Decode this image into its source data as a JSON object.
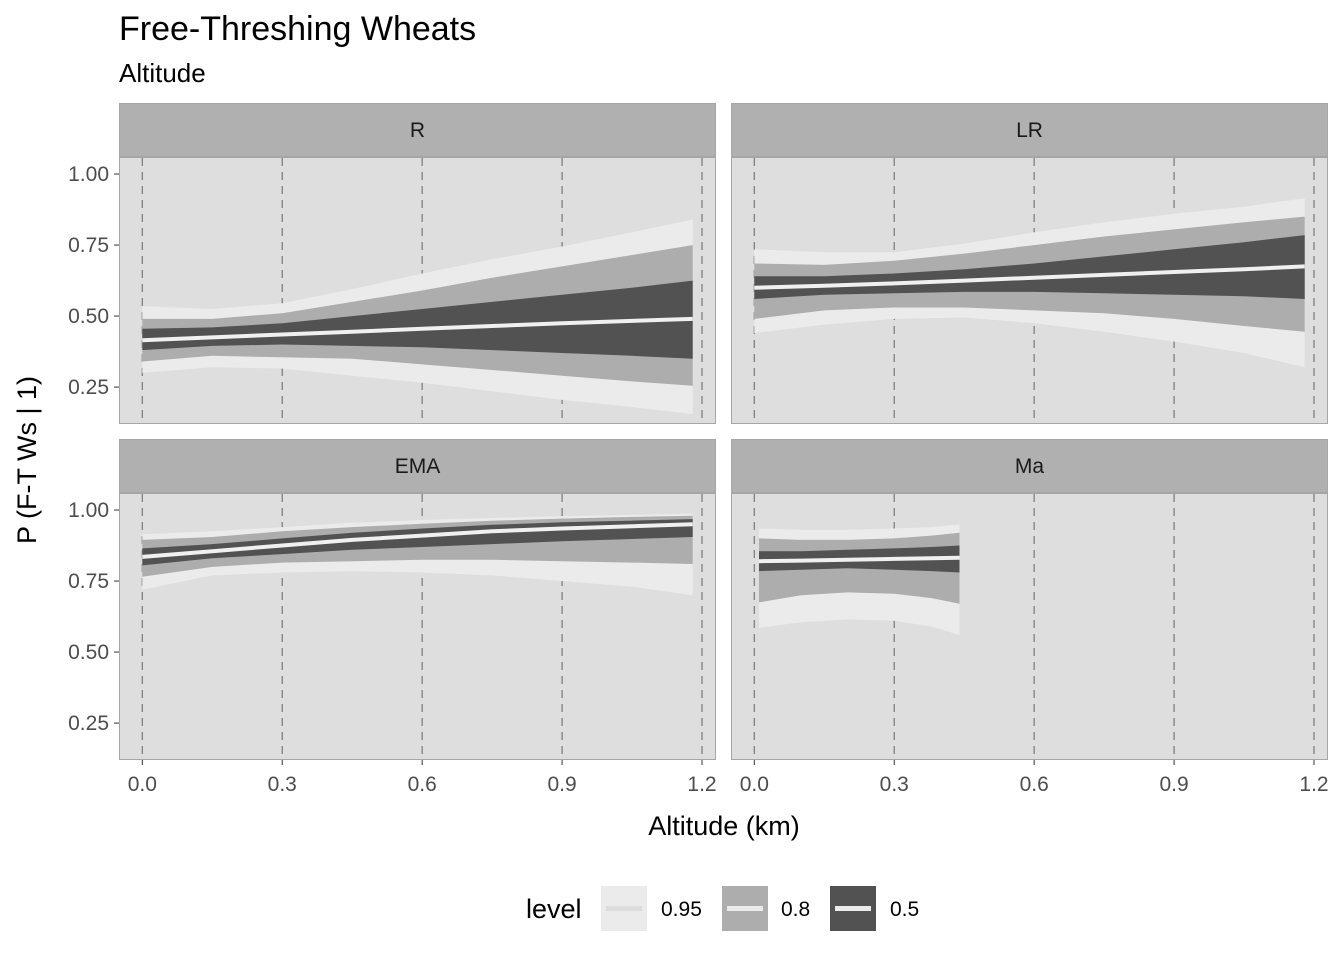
{
  "chart_data": {
    "type": "area",
    "title": "Free-Threshing Wheats",
    "subtitle": "Altitude",
    "xlabel": "Altitude (km)",
    "ylabel": "P (F-T Ws | 1)",
    "xlim": [
      -0.05,
      1.23
    ],
    "ylim": [
      0.12,
      1.06
    ],
    "x_ticks": [
      0.0,
      0.3,
      0.6,
      0.9,
      1.2
    ],
    "x_tick_labels": [
      "0.0",
      "0.3",
      "0.6",
      "0.9",
      "1.2"
    ],
    "y_ticks": [
      0.25,
      0.5,
      0.75,
      1.0
    ],
    "y_tick_labels": [
      "0.25",
      "0.50",
      "0.75",
      "1.00"
    ],
    "vertical_dashed_lines_at": [
      0.0,
      0.3,
      0.6,
      0.9,
      1.2
    ],
    "legend": {
      "title": "level",
      "position": "bottom",
      "entries": [
        {
          "label": "0.95",
          "color": "#ebebeb",
          "line_color": "#dddddd"
        },
        {
          "label": "0.8",
          "color": "#adadad",
          "line_color": "#ebebeb"
        },
        {
          "label": "0.5",
          "color": "#525252",
          "line_color": "#ebebeb"
        }
      ]
    },
    "colors": {
      "panel_bg": "#dedede",
      "strip_bg": "#b0b0b0",
      "border": "#a6a6a6",
      "gridline": "#7f7f7f",
      "median_line": "#f0f0f0",
      "band_95": "#ebebeb",
      "band_80": "#adadad",
      "band_50": "#525252"
    },
    "panels": [
      {
        "label": "R",
        "x": [
          0.0,
          0.15,
          0.3,
          0.45,
          0.6,
          0.75,
          0.9,
          1.05,
          1.18
        ],
        "median": [
          0.415,
          0.425,
          0.435,
          0.445,
          0.455,
          0.465,
          0.475,
          0.483,
          0.49
        ],
        "lower_50": [
          0.38,
          0.395,
          0.4,
          0.395,
          0.39,
          0.38,
          0.37,
          0.36,
          0.35
        ],
        "upper_50": [
          0.455,
          0.46,
          0.475,
          0.5,
          0.525,
          0.55,
          0.575,
          0.6,
          0.625
        ],
        "lower_80": [
          0.34,
          0.36,
          0.355,
          0.35,
          0.33,
          0.31,
          0.29,
          0.27,
          0.255
        ],
        "upper_80": [
          0.49,
          0.49,
          0.51,
          0.55,
          0.59,
          0.635,
          0.675,
          0.715,
          0.75
        ],
        "lower_95": [
          0.3,
          0.32,
          0.315,
          0.29,
          0.265,
          0.235,
          0.205,
          0.18,
          0.155
        ],
        "upper_95": [
          0.535,
          0.525,
          0.545,
          0.595,
          0.65,
          0.7,
          0.745,
          0.795,
          0.84
        ]
      },
      {
        "label": "LR",
        "x": [
          0.0,
          0.15,
          0.3,
          0.45,
          0.6,
          0.75,
          0.9,
          1.05,
          1.18
        ],
        "median": [
          0.6,
          0.607,
          0.615,
          0.625,
          0.635,
          0.645,
          0.655,
          0.665,
          0.675
        ],
        "lower_50": [
          0.56,
          0.575,
          0.58,
          0.585,
          0.585,
          0.58,
          0.575,
          0.57,
          0.56
        ],
        "upper_50": [
          0.64,
          0.64,
          0.65,
          0.665,
          0.685,
          0.71,
          0.735,
          0.76,
          0.785
        ],
        "lower_80": [
          0.49,
          0.52,
          0.53,
          0.53,
          0.52,
          0.51,
          0.49,
          0.465,
          0.445
        ],
        "upper_80": [
          0.685,
          0.68,
          0.695,
          0.72,
          0.75,
          0.78,
          0.805,
          0.83,
          0.85
        ],
        "lower_95": [
          0.44,
          0.47,
          0.49,
          0.495,
          0.475,
          0.445,
          0.41,
          0.37,
          0.32
        ],
        "upper_95": [
          0.735,
          0.725,
          0.725,
          0.755,
          0.795,
          0.83,
          0.86,
          0.885,
          0.915
        ]
      },
      {
        "label": "EMA",
        "x": [
          0.0,
          0.15,
          0.3,
          0.45,
          0.6,
          0.75,
          0.9,
          1.05,
          1.18
        ],
        "median": [
          0.835,
          0.855,
          0.875,
          0.895,
          0.91,
          0.925,
          0.935,
          0.943,
          0.95
        ],
        "lower_50": [
          0.805,
          0.83,
          0.845,
          0.86,
          0.87,
          0.88,
          0.89,
          0.898,
          0.905
        ],
        "upper_50": [
          0.865,
          0.88,
          0.9,
          0.92,
          0.935,
          0.948,
          0.957,
          0.963,
          0.968
        ],
        "lower_80": [
          0.765,
          0.8,
          0.815,
          0.82,
          0.825,
          0.825,
          0.82,
          0.815,
          0.81
        ],
        "upper_80": [
          0.895,
          0.905,
          0.925,
          0.94,
          0.952,
          0.962,
          0.97,
          0.976,
          0.98
        ],
        "lower_95": [
          0.72,
          0.77,
          0.78,
          0.785,
          0.78,
          0.77,
          0.75,
          0.73,
          0.7
        ],
        "upper_95": [
          0.915,
          0.925,
          0.94,
          0.955,
          0.965,
          0.972,
          0.978,
          0.983,
          0.988
        ]
      },
      {
        "label": "Ma",
        "x": [
          0.01,
          0.1,
          0.2,
          0.3,
          0.38,
          0.44
        ],
        "median": [
          0.82,
          0.822,
          0.825,
          0.828,
          0.83,
          0.832
        ],
        "lower_50": [
          0.785,
          0.79,
          0.795,
          0.79,
          0.785,
          0.78
        ],
        "upper_50": [
          0.855,
          0.855,
          0.86,
          0.865,
          0.87,
          0.875
        ],
        "lower_80": [
          0.675,
          0.7,
          0.71,
          0.705,
          0.69,
          0.67
        ],
        "upper_80": [
          0.9,
          0.895,
          0.895,
          0.9,
          0.91,
          0.92
        ],
        "lower_95": [
          0.585,
          0.605,
          0.615,
          0.61,
          0.59,
          0.56
        ],
        "upper_95": [
          0.935,
          0.93,
          0.93,
          0.935,
          0.94,
          0.95
        ]
      }
    ]
  }
}
